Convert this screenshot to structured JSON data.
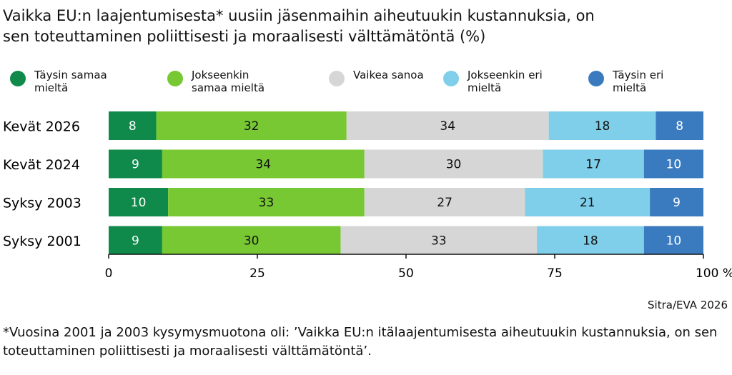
{
  "chart_data": {
    "type": "stacked-bar-horizontal",
    "title": "Vaikka EU:n laajentumisesta* uusiin jäsenmaihin aiheutuukin kustannuksia, on sen toteuttaminen poliittisesti ja moraalisesti välttämätöntä (%)",
    "categories": [
      "Kevät 2026",
      "Kevät 2024",
      "Syksy 2003",
      "Syksy 2001"
    ],
    "series": [
      {
        "name": "Täysin samaa mieltä",
        "color": "#0f8a4a",
        "label_color": "#ffffff",
        "values": [
          8,
          9,
          10,
          9
        ]
      },
      {
        "name": "Jokseenkin samaa mieltä",
        "color": "#77c832",
        "label_color": "#111111",
        "values": [
          32,
          34,
          33,
          30
        ]
      },
      {
        "name": "Vaikea sanoa",
        "color": "#d6d6d6",
        "label_color": "#111111",
        "values": [
          34,
          30,
          27,
          33
        ]
      },
      {
        "name": "Jokseenkin eri mieltä",
        "color": "#7fcfea",
        "label_color": "#111111",
        "values": [
          18,
          17,
          21,
          18
        ]
      },
      {
        "name": "Täysin eri mieltä",
        "color": "#3a7bbf",
        "label_color": "#ffffff",
        "values": [
          8,
          10,
          9,
          10
        ]
      }
    ],
    "xlim": [
      0,
      100
    ],
    "xticks": [
      0,
      25,
      50,
      75,
      {
        "value": 100,
        "label": "100 %"
      }
    ],
    "source": "Sitra/EVA 2026",
    "footnote": "*Vuosina 2001 ja 2003 kysymysmuotona oli: ’Vaikka EU:n itälaajentumisesta aiheutuukin kustannuksia, on sen toteuttaminen poliittisesti ja moraalisesti välttämätöntä’."
  }
}
